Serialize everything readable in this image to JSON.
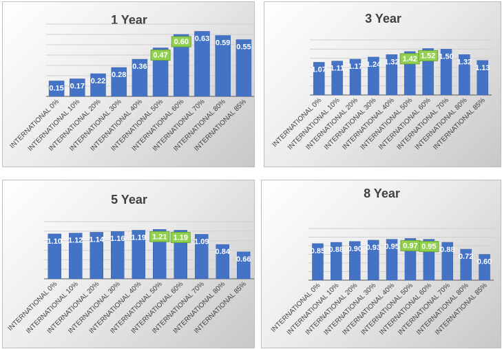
{
  "colors": {
    "bar": "#4472C4",
    "bar_stroke": "#3a63ad",
    "highlight_fill": "#92D050",
    "highlight_stroke": "#6aa637",
    "grid": "#d0d0d0",
    "axis": "#555555",
    "label_text": "#ffffff",
    "title_text": "#404040"
  },
  "chart_data": [
    {
      "type": "bar",
      "title": "1 Year",
      "categories": [
        "INTERNATIONAL 0%",
        "INTERNATIONAL 10%",
        "INTERNATIONAL 20%",
        "INTERNATIONAL 30%",
        "INTERNATIONAL 40%",
        "INTERNATIONAL 50%",
        "INTERNATIONAL 60%",
        "INTERNATIONAL 70%",
        "INTERNATIONAL 80%",
        "INTERNATIONAL 85%"
      ],
      "values": [
        0.15,
        0.17,
        0.22,
        0.28,
        0.36,
        0.47,
        0.6,
        0.63,
        0.59,
        0.55
      ],
      "labels": [
        "0.15",
        "0.17",
        "0.22",
        "0.28",
        "0.36",
        "0.47",
        "0.60",
        "0.63",
        "0.59",
        "0.55"
      ],
      "highlighted_labels": [
        5,
        6
      ],
      "ylim": [
        0,
        0.7
      ],
      "grid": true
    },
    {
      "type": "bar",
      "title": "3 Year",
      "categories": [
        "INTERNATIONAL 0%",
        "INTERNATIONAL 10%",
        "INTERNATIONAL 20%",
        "INTERNATIONAL 30%",
        "INTERNATIONAL 40%",
        "INTERNATIONAL 50%",
        "INTERNATIONAL 60%",
        "INTERNATIONAL 70%",
        "INTERNATIONAL 80%",
        "INTERNATIONAL 85%"
      ],
      "values": [
        1.07,
        1.11,
        1.17,
        1.24,
        1.32,
        1.42,
        1.52,
        1.5,
        1.32,
        1.13
      ],
      "labels": [
        "1.07",
        "1.11",
        "1.17",
        "1.24",
        "1.32",
        "1.42",
        "1.52",
        "1.50",
        "1.32",
        "1.13"
      ],
      "highlighted_labels": [
        5,
        6
      ],
      "ylim": [
        0,
        1.8
      ],
      "grid": true
    },
    {
      "type": "bar",
      "title": "5 Year",
      "categories": [
        "INTERNATIONAL 0%",
        "INTERNATIONAL 10%",
        "INTERNATIONAL 20%",
        "INTERNATIONAL 30%",
        "INTERNATIONAL 40%",
        "INTERNATIONAL 50%",
        "INTERNATIONAL 60%",
        "INTERNATIONAL 70%",
        "INTERNATIONAL 80%",
        "INTERNATIONAL 85%"
      ],
      "values": [
        1.1,
        1.12,
        1.14,
        1.16,
        1.19,
        1.21,
        1.19,
        1.09,
        0.84,
        0.66
      ],
      "labels": [
        "1.10",
        "1.12",
        "1.14",
        "1.16",
        "1.19",
        "1.21",
        "1.19",
        "1.09",
        "0.84",
        "0.66"
      ],
      "highlighted_labels": [
        5,
        6
      ],
      "ylim": [
        0,
        1.4
      ],
      "grid": true
    },
    {
      "type": "bar",
      "title": "8 Year",
      "categories": [
        "INTERNATIONAL 0%",
        "INTERNATIONAL 10%",
        "INTERNATIONAL 20%",
        "INTERNATIONAL 30%",
        "INTERNATIONAL 40%",
        "INTERNATIONAL 50%",
        "INTERNATIONAL 60%",
        "INTERNATIONAL 70%",
        "INTERNATIONAL 80%",
        "INTERNATIONAL 85%"
      ],
      "values": [
        0.85,
        0.88,
        0.9,
        0.93,
        0.95,
        0.97,
        0.95,
        0.88,
        0.72,
        0.6
      ],
      "labels": [
        "0.85",
        "0.88",
        "0.90",
        "0.93",
        "0.95",
        "0.97",
        "0.95",
        "0.88",
        "0.72",
        "0.60"
      ],
      "highlighted_labels": [
        5,
        6
      ],
      "ylim": [
        0,
        1.2
      ],
      "grid": true
    }
  ]
}
